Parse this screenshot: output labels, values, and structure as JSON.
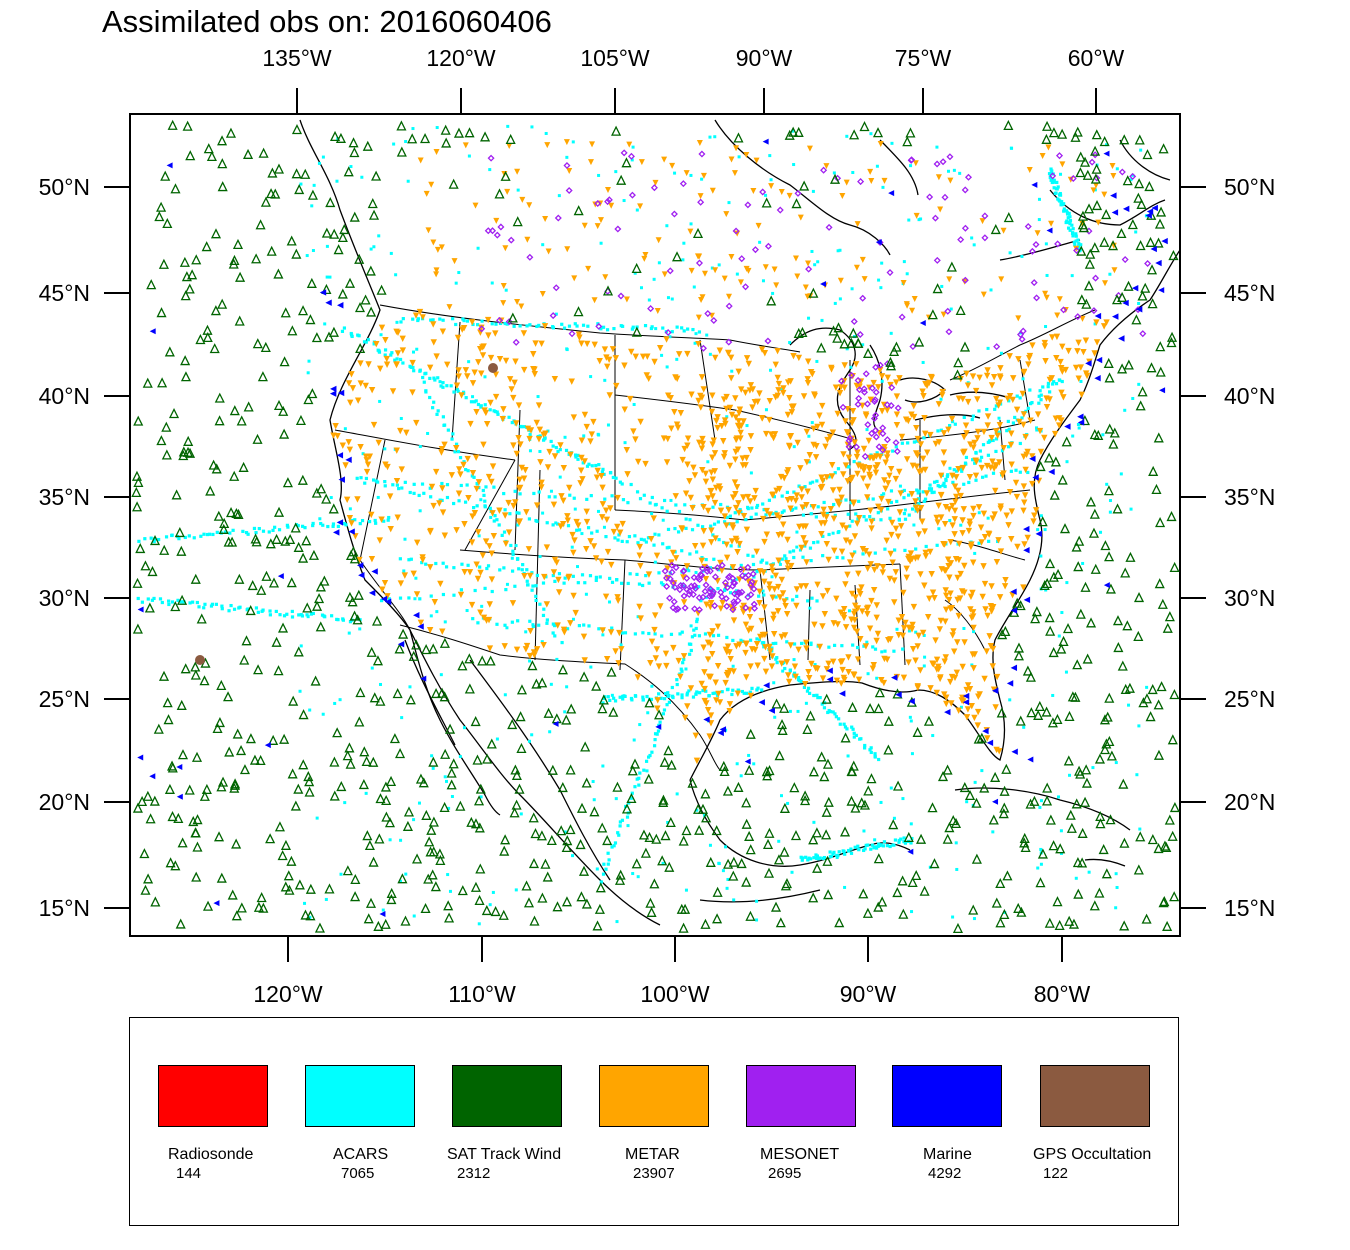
{
  "title": "Assimilated obs on: 2016060406",
  "axes": {
    "top_lon_labels": [
      "135°W",
      "120°W",
      "105°W",
      "90°W",
      "75°W",
      "60°W"
    ],
    "bottom_lon_labels": [
      "120°W",
      "110°W",
      "100°W",
      "90°W",
      "80°W"
    ],
    "lat_labels": [
      "50°N",
      "45°N",
      "40°N",
      "35°N",
      "30°N",
      "25°N",
      "20°N",
      "15°N"
    ]
  },
  "map": {
    "region": "Continental United States and surrounding oceans",
    "projection": "Lambert conformal",
    "lon_range": [
      "128°W",
      "74°W"
    ],
    "lat_range": [
      "14°N",
      "53°N"
    ]
  },
  "legend": [
    {
      "name": "Radiosonde",
      "count": "144",
      "color": "#ff0000",
      "marker": "none"
    },
    {
      "name": "ACARS",
      "count": "7065",
      "color": "#00ffff",
      "marker": "square-dot"
    },
    {
      "name": "SAT Track Wind",
      "count": "2312",
      "color": "#006400",
      "marker": "triangle-up-outline"
    },
    {
      "name": "METAR",
      "count": "23907",
      "color": "#ffa500",
      "marker": "triangle-down"
    },
    {
      "name": "MESONET",
      "count": "2695",
      "color": "#a020f0",
      "marker": "diamond"
    },
    {
      "name": "Marine",
      "count": "4292",
      "color": "#0000ff",
      "marker": "triangle-left"
    },
    {
      "name": "GPS Occultation",
      "count": "122",
      "color": "#8b5a40",
      "marker": "dot"
    }
  ]
}
